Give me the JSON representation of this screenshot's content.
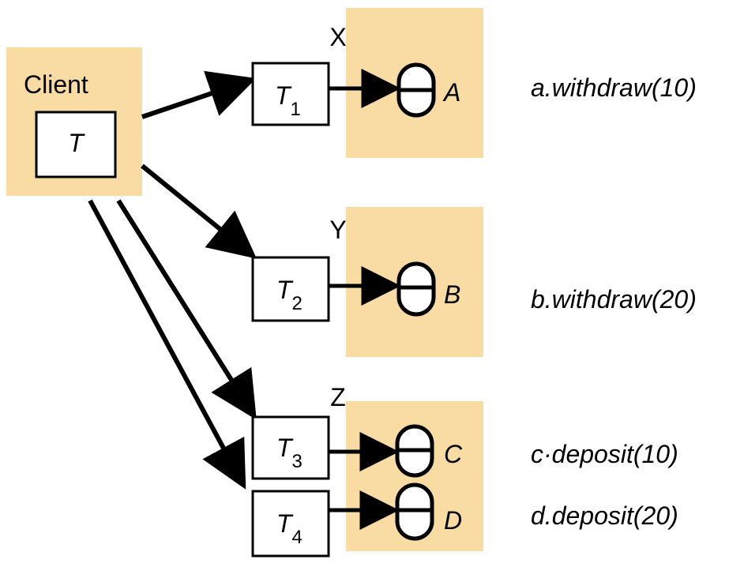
{
  "client": {
    "label": "Client",
    "transaction": "T"
  },
  "servers": [
    {
      "name": "X",
      "sub": {
        "letter": "T",
        "index": "1"
      },
      "object": "A",
      "operation": "a.withdraw(10)"
    },
    {
      "name": "Y",
      "sub": {
        "letter": "T",
        "index": "2"
      },
      "object": "B",
      "operation": "b.withdraw(20)"
    },
    {
      "name": "Z",
      "subs": [
        {
          "letter": "T",
          "index": "3",
          "object": "C",
          "operation": "c·deposit(10)"
        },
        {
          "letter": "T",
          "index": "4",
          "object": "D",
          "operation": "d.deposit(20)"
        }
      ]
    }
  ],
  "colors": {
    "panel": "#f9dca3",
    "ink": "#000000",
    "box": "#ffffff"
  },
  "icons": {
    "object": "database-cylinder-icon",
    "arrow": "arrow-right-icon"
  }
}
